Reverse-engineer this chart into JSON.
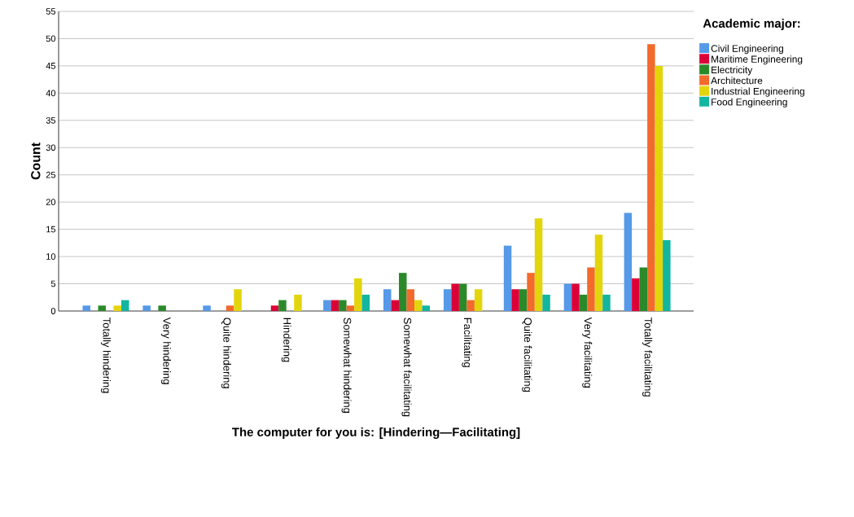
{
  "chart_data": {
    "type": "bar",
    "xlabel": "The computer for you is: [Hindering—Facilitating]",
    "ylabel": "Count",
    "legend_title": "Academic major:",
    "categories": [
      "Totally hindering",
      "Very hindering",
      "Quite hindering",
      "Hindering",
      "Somewhat hindering",
      "Somewhat facilitating",
      "Facilitating",
      "Quite facilitating",
      "Very facilitating",
      "Totally facilitating"
    ],
    "series": [
      {
        "name": "Civil Engineering",
        "color": "#5599e8",
        "values": [
          1,
          1,
          1,
          0,
          2,
          4,
          4,
          12,
          5,
          18
        ]
      },
      {
        "name": "Maritime Engineering",
        "color": "#dc0038",
        "values": [
          0,
          0,
          0,
          1,
          2,
          2,
          5,
          4,
          5,
          6
        ]
      },
      {
        "name": "Electricity",
        "color": "#2a8a2a",
        "values": [
          1,
          1,
          0,
          2,
          2,
          7,
          5,
          4,
          3,
          8
        ]
      },
      {
        "name": "Architecture",
        "color": "#f26a2c",
        "values": [
          0,
          0,
          1,
          0,
          1,
          4,
          2,
          7,
          8,
          49
        ]
      },
      {
        "name": "Industrial Engineering",
        "color": "#e3d50c",
        "values": [
          1,
          0,
          4,
          3,
          6,
          2,
          4,
          17,
          14,
          45
        ]
      },
      {
        "name": "Food Engineering",
        "color": "#12b5a0",
        "values": [
          2,
          0,
          0,
          0,
          3,
          1,
          0,
          3,
          3,
          13
        ]
      }
    ],
    "ylim": [
      0,
      55
    ],
    "yticks": [
      0,
      5,
      10,
      15,
      20,
      25,
      30,
      35,
      40,
      45,
      50,
      55
    ],
    "grid": "y",
    "legend": "right"
  }
}
